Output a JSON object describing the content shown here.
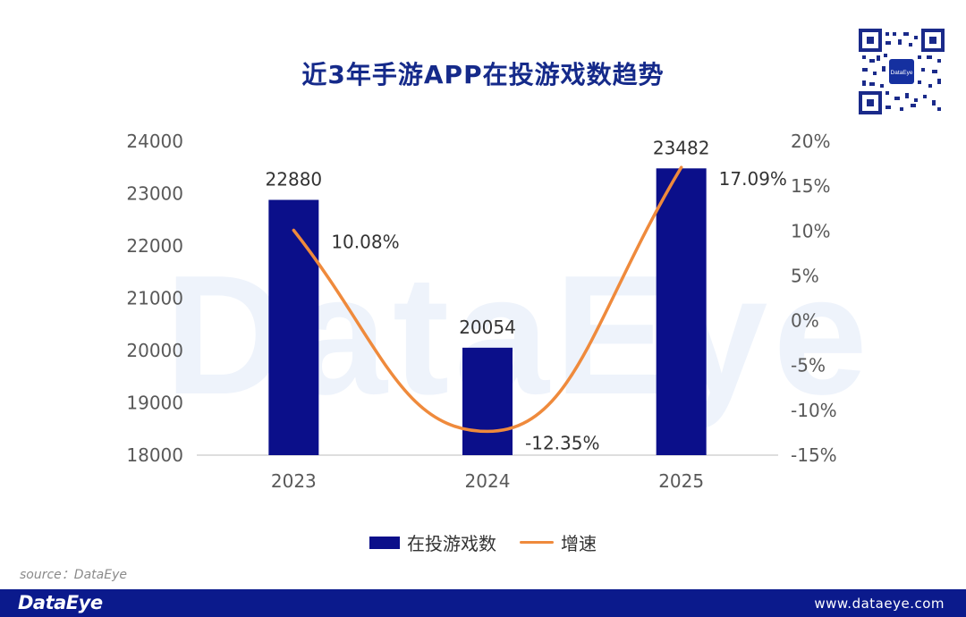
{
  "title": "近3年手游APP在投游戏数趋势",
  "watermark": "DataEye",
  "source_text": "source：DataEye",
  "footer": {
    "brand": "DataEye",
    "url": "www.dataeye.com"
  },
  "colors": {
    "bar": "#0b0f8a",
    "line": "#ef8a3c",
    "title": "#152a8a",
    "footer": "#0b1a8c"
  },
  "chart_data": {
    "type": "bar",
    "categories": [
      "2023",
      "2024",
      "2025"
    ],
    "series": [
      {
        "name": "在投游戏数",
        "type": "bar",
        "axis": "left",
        "values": [
          22880,
          20054,
          23482
        ],
        "labels": [
          "22880",
          "20054",
          "23482"
        ]
      },
      {
        "name": "增速",
        "type": "line",
        "axis": "right",
        "values": [
          10.08,
          -12.35,
          17.09
        ],
        "labels": [
          "10.08%",
          "-12.35%",
          "17.09%"
        ]
      }
    ],
    "y_left": {
      "min": 18000,
      "max": 24000,
      "ticks": [
        "18000",
        "19000",
        "20000",
        "21000",
        "22000",
        "23000",
        "24000"
      ]
    },
    "y_right": {
      "min": -15,
      "max": 20,
      "ticks": [
        "-15%",
        "-10%",
        "-5%",
        "0%",
        "5%",
        "10%",
        "15%",
        "20%"
      ]
    },
    "grid": false,
    "legend_position": "bottom"
  }
}
